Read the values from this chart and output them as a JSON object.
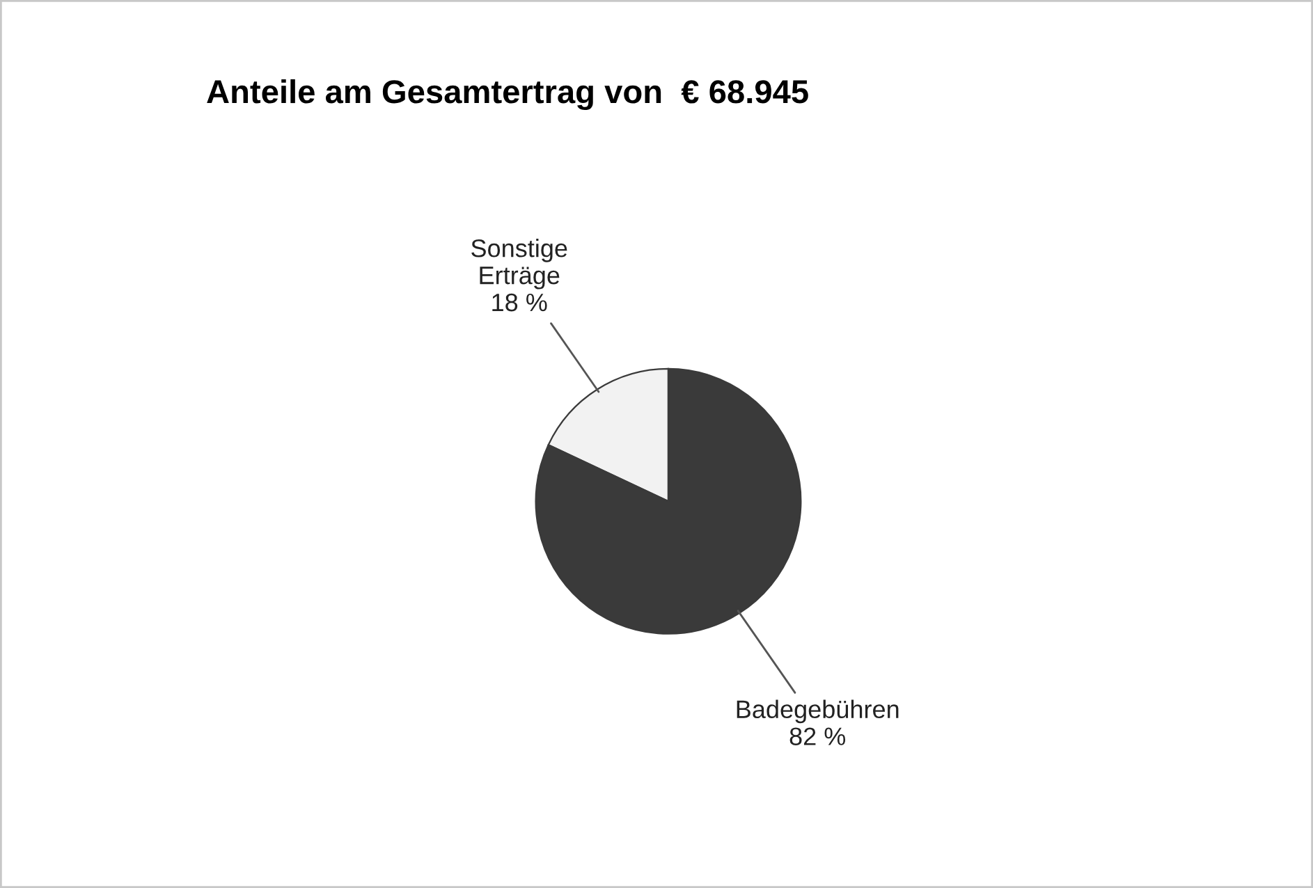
{
  "chart_data": {
    "type": "pie",
    "title": "Anteile am Gesamtertrag von  € 68.945",
    "categories": [
      "Sonstige\nErträge",
      "Badegebühren"
    ],
    "values": [
      18,
      82
    ],
    "value_labels": [
      "18 %",
      "82 %"
    ],
    "colors": [
      "#f2f2f2",
      "#3a3a3a"
    ],
    "legend": false
  }
}
